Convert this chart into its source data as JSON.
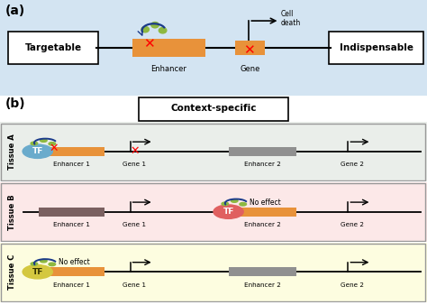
{
  "panel_a_bg": "#d3e4f2",
  "orange": "#e8923a",
  "gray_dark": "#7a6060",
  "gray_med": "#909090",
  "tf_blue": "#6aabcc",
  "tf_red": "#e06060",
  "tf_yellow": "#d4c840",
  "green_dot": "#8db840",
  "arc_navy": "#1a3a8a",
  "tissue_a_bg": "#eaeeea",
  "tissue_b_bg": "#fce8e8",
  "tissue_c_bg": "#fdfde0",
  "tissues": [
    {
      "label": "Tissue A",
      "bg": "#eaeeea",
      "enh1_col": "#e8923a",
      "enh2_col": "#909090",
      "tf_col": "#6aabcc",
      "tf_on": 0,
      "has_x": true,
      "no_effect": false
    },
    {
      "label": "Tissue B",
      "bg": "#fce8e8",
      "enh1_col": "#7a6060",
      "enh2_col": "#e8923a",
      "tf_col": "#e06060",
      "tf_on": 1,
      "has_x": false,
      "no_effect": true
    },
    {
      "label": "Tissue C",
      "bg": "#fdfde0",
      "enh1_col": "#e8923a",
      "enh2_col": "#909090",
      "tf_col": "#d4c840",
      "tf_on": 0,
      "has_x": false,
      "no_effect": true
    }
  ]
}
